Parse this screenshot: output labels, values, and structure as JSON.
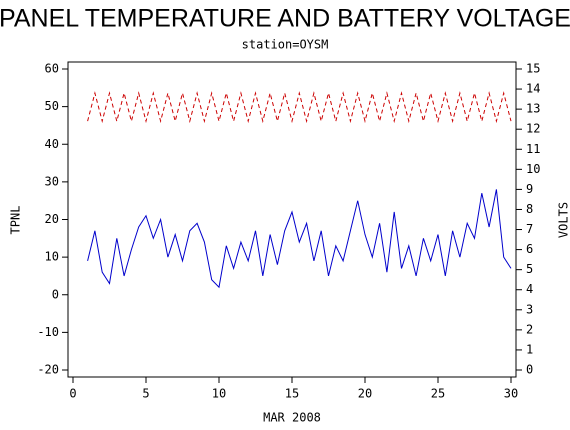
{
  "chart_data": {
    "type": "line",
    "title": "PANEL TEMPERATURE AND BATTERY VOLTAGE",
    "subtitle": "station=OYSM",
    "x_label": "MAR 2008",
    "y_label": "TPNL",
    "y2_label": "VOLTS",
    "x": [
      1,
      1.5,
      2,
      2.5,
      3,
      3.5,
      4,
      4.5,
      5,
      5.5,
      6,
      6.5,
      7,
      7.5,
      8,
      8.5,
      9,
      9.5,
      10,
      10.5,
      11,
      11.5,
      12,
      12.5,
      13,
      13.5,
      14,
      14.5,
      15,
      15.5,
      16,
      16.5,
      17,
      17.5,
      18,
      18.5,
      19,
      19.5,
      20,
      20.5,
      21,
      21.5,
      22,
      22.5,
      23,
      23.5,
      24,
      24.5,
      25,
      25.5,
      26,
      26.5,
      27,
      27.5,
      28,
      28.5,
      29,
      29.5,
      30
    ],
    "series": [
      {
        "name": "TPNL",
        "color": "#0000cc",
        "axis": "y",
        "dashed": false,
        "values": [
          9,
          17,
          6,
          3,
          15,
          5,
          12,
          18,
          21,
          15,
          20,
          10,
          16,
          9,
          17,
          19,
          14,
          4,
          2,
          13,
          7,
          14,
          9,
          17,
          5,
          16,
          8,
          17,
          22,
          14,
          19,
          9,
          17,
          5,
          13,
          9,
          17,
          25,
          16,
          10,
          19,
          6,
          22,
          7,
          13,
          5,
          15,
          9,
          16,
          5,
          17,
          10,
          19,
          15,
          27,
          18,
          28,
          10,
          7
        ]
      },
      {
        "name": "VOLTS",
        "color": "#cc0000",
        "axis": "y2",
        "dashed": true,
        "values": [
          12.4,
          13.8,
          12.4,
          13.8,
          12.4,
          13.8,
          12.4,
          13.8,
          12.4,
          13.8,
          12.4,
          13.8,
          12.4,
          13.8,
          12.4,
          13.8,
          12.4,
          13.8,
          12.4,
          13.8,
          12.4,
          13.8,
          12.4,
          13.8,
          12.4,
          13.8,
          12.4,
          13.8,
          12.4,
          13.8,
          12.4,
          13.8,
          12.4,
          13.8,
          12.4,
          13.8,
          12.4,
          13.8,
          12.4,
          13.8,
          12.4,
          13.8,
          12.4,
          13.8,
          12.4,
          13.8,
          12.4,
          13.8,
          12.4,
          13.8,
          12.4,
          13.8,
          12.4,
          13.8,
          12.4,
          13.8,
          12.4,
          13.8,
          12.4
        ]
      }
    ],
    "xlim": [
      0,
      30
    ],
    "xticks": [
      0,
      5,
      10,
      15,
      20,
      25,
      30
    ],
    "ylim": [
      -20,
      60
    ],
    "yticks": [
      -20,
      -10,
      0,
      10,
      20,
      30,
      40,
      50,
      60
    ],
    "y2lim": [
      0,
      15
    ],
    "y2ticks": [
      0,
      1,
      2,
      3,
      4,
      5,
      6,
      7,
      8,
      9,
      10,
      11,
      12,
      13,
      14,
      15
    ]
  }
}
